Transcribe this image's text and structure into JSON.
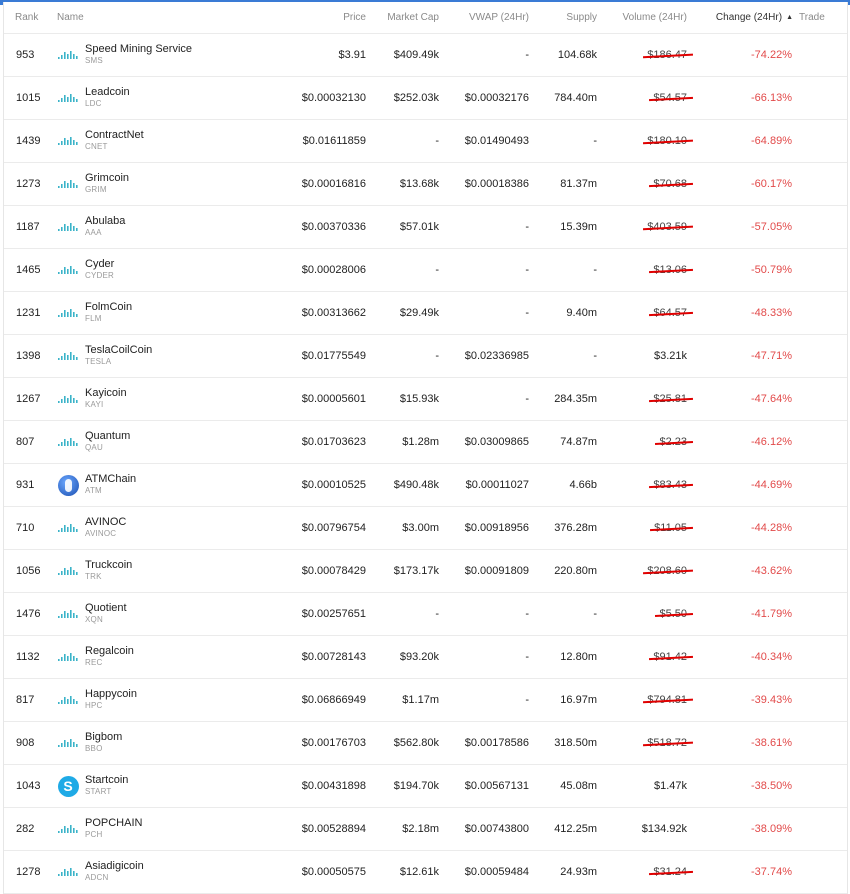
{
  "header": {
    "rank": "Rank",
    "name": "Name",
    "price": "Price",
    "market_cap": "Market Cap",
    "vwap": "VWAP (24Hr)",
    "supply": "Supply",
    "volume": "Volume (24Hr)",
    "change": "Change (24Hr)",
    "change_sort": "▲",
    "trade": "Trade"
  },
  "colors": {
    "negative": "#e24a4a",
    "sparkline": "#3bb3c9",
    "strike": "#e00000",
    "top_strip": "#3a7bd5"
  },
  "rows": [
    {
      "rank": "953",
      "name": "Speed Mining Service",
      "symbol": "SMS",
      "price": "$3.91",
      "market_cap": "$409.49k",
      "vwap": "-",
      "supply": "104.68k",
      "volume": "$186.47",
      "change": "-74.22%",
      "icon": "sparkline-icon"
    },
    {
      "rank": "1015",
      "name": "Leadcoin",
      "symbol": "LDC",
      "price": "$0.00032130",
      "market_cap": "$252.03k",
      "vwap": "$0.00032176",
      "supply": "784.40m",
      "volume": "$54.57",
      "change": "-66.13%",
      "icon": "sparkline-icon"
    },
    {
      "rank": "1439",
      "name": "ContractNet",
      "symbol": "CNET",
      "price": "$0.01611859",
      "market_cap": "-",
      "vwap": "$0.01490493",
      "supply": "-",
      "volume": "$180.10",
      "change": "-64.89%",
      "icon": "sparkline-icon"
    },
    {
      "rank": "1273",
      "name": "Grimcoin",
      "symbol": "GRIM",
      "price": "$0.00016816",
      "market_cap": "$13.68k",
      "vwap": "$0.00018386",
      "supply": "81.37m",
      "volume": "$70.68",
      "change": "-60.17%",
      "icon": "sparkline-icon"
    },
    {
      "rank": "1187",
      "name": "Abulaba",
      "symbol": "AAA",
      "price": "$0.00370336",
      "market_cap": "$57.01k",
      "vwap": "-",
      "supply": "15.39m",
      "volume": "$403.59",
      "change": "-57.05%",
      "icon": "sparkline-icon"
    },
    {
      "rank": "1465",
      "name": "Cyder",
      "symbol": "CYDER",
      "price": "$0.00028006",
      "market_cap": "-",
      "vwap": "-",
      "supply": "-",
      "volume": "$13.06",
      "change": "-50.79%",
      "icon": "sparkline-icon"
    },
    {
      "rank": "1231",
      "name": "FolmCoin",
      "symbol": "FLM",
      "price": "$0.00313662",
      "market_cap": "$29.49k",
      "vwap": "-",
      "supply": "9.40m",
      "volume": "$64.57",
      "change": "-48.33%",
      "icon": "sparkline-icon"
    },
    {
      "rank": "1398",
      "name": "TeslaCoilCoin",
      "symbol": "TESLA",
      "price": "$0.01775549",
      "market_cap": "-",
      "vwap": "$0.02336985",
      "supply": "-",
      "volume": "$3.21k",
      "change": "-47.71%",
      "icon": "sparkline-icon"
    },
    {
      "rank": "1267",
      "name": "Kayicoin",
      "symbol": "KAYI",
      "price": "$0.00005601",
      "market_cap": "$15.93k",
      "vwap": "-",
      "supply": "284.35m",
      "volume": "$25.81",
      "change": "-47.64%",
      "icon": "sparkline-icon"
    },
    {
      "rank": "807",
      "name": "Quantum",
      "symbol": "QAU",
      "price": "$0.01703623",
      "market_cap": "$1.28m",
      "vwap": "$0.03009865",
      "supply": "74.87m",
      "volume": "$2.23",
      "change": "-46.12%",
      "icon": "sparkline-icon"
    },
    {
      "rank": "931",
      "name": "ATMChain",
      "symbol": "ATM",
      "price": "$0.00010525",
      "market_cap": "$490.48k",
      "vwap": "$0.00011027",
      "supply": "4.66b",
      "volume": "$83.43",
      "change": "-44.69%",
      "icon": "atm-coin-icon"
    },
    {
      "rank": "710",
      "name": "AVINOC",
      "symbol": "AVINOC",
      "price": "$0.00796754",
      "market_cap": "$3.00m",
      "vwap": "$0.00918956",
      "supply": "376.28m",
      "volume": "$11.05",
      "change": "-44.28%",
      "icon": "sparkline-icon"
    },
    {
      "rank": "1056",
      "name": "Truckcoin",
      "symbol": "TRK",
      "price": "$0.00078429",
      "market_cap": "$173.17k",
      "vwap": "$0.00091809",
      "supply": "220.80m",
      "volume": "$208.60",
      "change": "-43.62%",
      "icon": "sparkline-icon"
    },
    {
      "rank": "1476",
      "name": "Quotient",
      "symbol": "XQN",
      "price": "$0.00257651",
      "market_cap": "-",
      "vwap": "-",
      "supply": "-",
      "volume": "$5.50",
      "change": "-41.79%",
      "icon": "sparkline-icon"
    },
    {
      "rank": "1132",
      "name": "Regalcoin",
      "symbol": "REC",
      "price": "$0.00728143",
      "market_cap": "$93.20k",
      "vwap": "-",
      "supply": "12.80m",
      "volume": "$91.42",
      "change": "-40.34%",
      "icon": "sparkline-icon"
    },
    {
      "rank": "817",
      "name": "Happycoin",
      "symbol": "HPC",
      "price": "$0.06866949",
      "market_cap": "$1.17m",
      "vwap": "-",
      "supply": "16.97m",
      "volume": "$794.81",
      "change": "-39.43%",
      "icon": "sparkline-icon"
    },
    {
      "rank": "908",
      "name": "Bigbom",
      "symbol": "BBO",
      "price": "$0.00176703",
      "market_cap": "$562.80k",
      "vwap": "$0.00178586",
      "supply": "318.50m",
      "volume": "$518.72",
      "change": "-38.61%",
      "icon": "sparkline-icon"
    },
    {
      "rank": "1043",
      "name": "Startcoin",
      "symbol": "START",
      "price": "$0.00431898",
      "market_cap": "$194.70k",
      "vwap": "$0.00567131",
      "supply": "45.08m",
      "volume": "$1.47k",
      "change": "-38.50%",
      "icon": "startcoin-icon"
    },
    {
      "rank": "282",
      "name": "POPCHAIN",
      "symbol": "PCH",
      "price": "$0.00528894",
      "market_cap": "$2.18m",
      "vwap": "$0.00743800",
      "supply": "412.25m",
      "volume": "$134.92k",
      "change": "-38.09%",
      "icon": "sparkline-icon"
    },
    {
      "rank": "1278",
      "name": "Asiadigicoin",
      "symbol": "ADCN",
      "price": "$0.00050575",
      "market_cap": "$12.61k",
      "vwap": "$0.00059484",
      "supply": "24.93m",
      "volume": "$31.24",
      "change": "-37.74%",
      "icon": "sparkline-icon"
    }
  ],
  "struck_volume_rows": [
    0,
    1,
    2,
    3,
    4,
    5,
    6,
    8,
    9,
    10,
    11,
    12,
    13,
    14,
    15,
    16,
    19
  ]
}
